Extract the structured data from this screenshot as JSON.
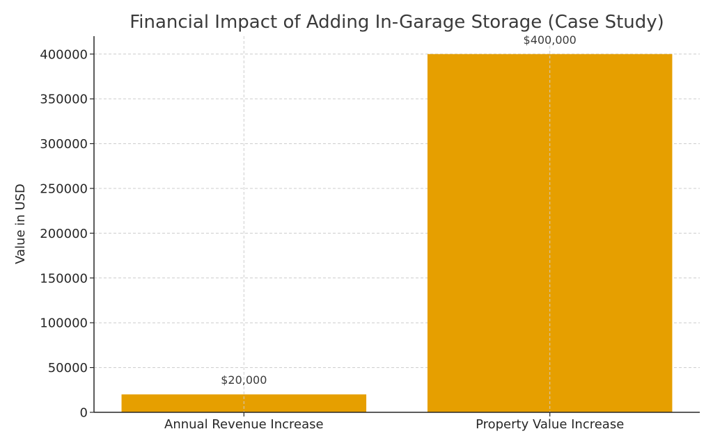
{
  "chart_data": {
    "type": "bar",
    "title": "Financial Impact of Adding In-Garage Storage (Case Study)",
    "xlabel": "",
    "ylabel": "Value in USD",
    "categories": [
      "Annual Revenue Increase",
      "Property Value Increase"
    ],
    "values": [
      20000,
      400000
    ],
    "data_labels": [
      "$20,000",
      "$400,000"
    ],
    "ylim": [
      0,
      420000
    ],
    "yticks": [
      0,
      50000,
      100000,
      150000,
      200000,
      250000,
      300000,
      350000,
      400000
    ],
    "ytick_labels": [
      "0",
      "50000",
      "100000",
      "150000",
      "200000",
      "250000",
      "300000",
      "350000",
      "400000"
    ],
    "grid": true,
    "bar_color": "#E69F00",
    "legend": null
  }
}
